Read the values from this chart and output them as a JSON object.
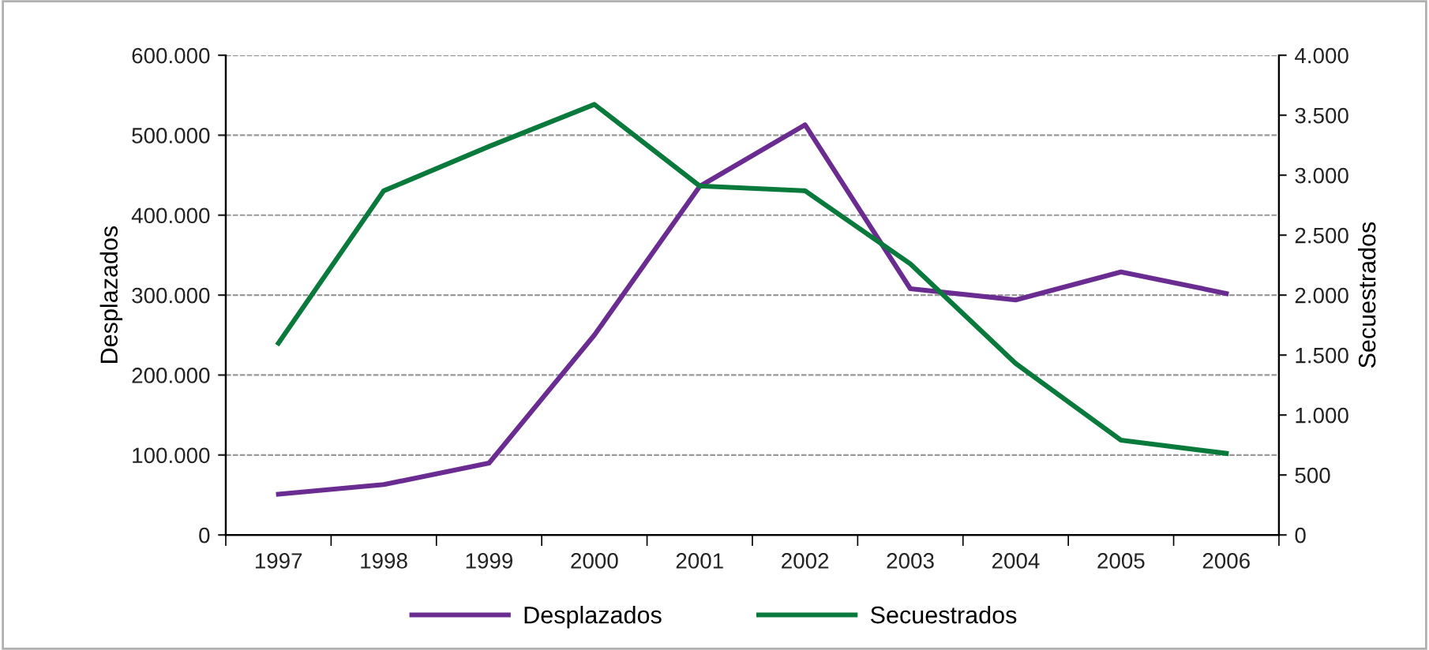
{
  "chart_data": {
    "type": "line",
    "categories": [
      "1997",
      "1998",
      "1999",
      "2000",
      "2001",
      "2002",
      "2003",
      "2004",
      "2005",
      "2006"
    ],
    "series": [
      {
        "name": "Desplazados",
        "color": "#6a2c91",
        "values": [
          51000,
          63000,
          90000,
          250000,
          436000,
          513000,
          308000,
          294000,
          329000,
          302000
        ]
      },
      {
        "name": "Secuestrados",
        "color": "#0a7a3c",
        "axis": "y2",
        "values": [
          1600,
          2870,
          3240,
          3590,
          2910,
          2870,
          2260,
          1430,
          790,
          680
        ]
      }
    ],
    "ylabel": "Desplazados",
    "y2label": "Secuestrados",
    "ylim": [
      0,
      600000
    ],
    "yticks": [
      0,
      {
        "value": 100000,
        "label": "100.000"
      },
      {
        "value": 200000,
        "label": "200.000"
      },
      {
        "value": 300000,
        "label": "300.000"
      },
      {
        "value": 400000,
        "label": "400.000"
      },
      {
        "value": 500000,
        "label": "500.000"
      },
      {
        "value": 600000,
        "label": "600.000"
      }
    ],
    "y2lim": [
      0,
      4000
    ],
    "y2ticks": [
      0,
      500,
      {
        "value": 1000,
        "label": "1.000"
      },
      {
        "value": 1500,
        "label": "1.500"
      },
      {
        "value": 2000,
        "label": "2.000"
      },
      {
        "value": 2500,
        "label": "2.500"
      },
      {
        "value": 3000,
        "label": "3.000"
      },
      {
        "value": 3500,
        "label": "3.500"
      },
      {
        "value": 4000,
        "label": "4.000"
      }
    ],
    "grid": "y",
    "legend": "bottom",
    "marker": "none",
    "line_style": "solid"
  }
}
